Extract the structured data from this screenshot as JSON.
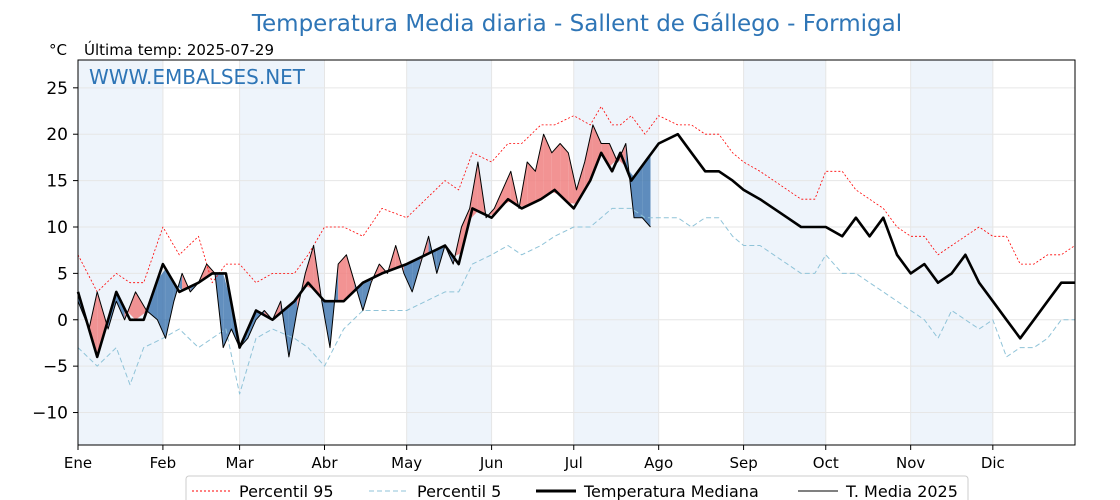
{
  "title": "Temperatura Media diaria - Sallent de Gállego - Formigal",
  "unit_label": "°C",
  "last_temp": "Última temp: 2025-07-29",
  "watermark": "WWW.EMBALSES.NET",
  "colors": {
    "title": "#2e75b6",
    "p95": "#ff0000",
    "p5": "#8fc3d8",
    "median": "#000000",
    "current": "#000000",
    "above_fill": "#f08080",
    "above_fill_light": "#f6b8b8",
    "below_fill": "#2e6aa8",
    "below_fill_light": "#8fb0d0",
    "band": "#eef4fb"
  },
  "chart_data": {
    "type": "line",
    "x_unit": "day of year",
    "xlim": [
      1,
      365
    ],
    "ylim": [
      -13.5,
      28
    ],
    "yticks": [
      -10,
      -5,
      0,
      5,
      10,
      15,
      20,
      25
    ],
    "grid": true,
    "months": [
      {
        "label": "Ene",
        "day": 1
      },
      {
        "label": "Feb",
        "day": 32
      },
      {
        "label": "Mar",
        "day": 60
      },
      {
        "label": "Abr",
        "day": 91
      },
      {
        "label": "May",
        "day": 121
      },
      {
        "label": "Jun",
        "day": 152
      },
      {
        "label": "Jul",
        "day": 182
      },
      {
        "label": "Ago",
        "day": 213
      },
      {
        "label": "Sep",
        "day": 244
      },
      {
        "label": "Oct",
        "day": 274
      },
      {
        "label": "Nov",
        "day": 305
      },
      {
        "label": "Dic",
        "day": 335
      }
    ],
    "legend": {
      "position": "bottom",
      "entries": [
        {
          "label": "Percentil 95",
          "style": "p95"
        },
        {
          "label": "Percentil 5",
          "style": "p5"
        },
        {
          "label": "Temperatura Mediana",
          "style": "median"
        },
        {
          "label": "T. Media 2025",
          "style": "current"
        }
      ]
    },
    "series": [
      {
        "key": "p95",
        "name": "Percentil 95",
        "x": [
          1,
          8,
          15,
          20,
          25,
          32,
          38,
          45,
          50,
          55,
          60,
          66,
          72,
          80,
          85,
          91,
          98,
          105,
          112,
          121,
          128,
          135,
          140,
          145,
          152,
          158,
          163,
          170,
          175,
          182,
          188,
          192,
          196,
          199,
          203,
          208,
          213,
          220,
          225,
          230,
          235,
          240,
          244,
          250,
          255,
          260,
          265,
          270,
          274,
          280,
          285,
          290,
          295,
          300,
          305,
          310,
          315,
          320,
          325,
          330,
          335,
          340,
          345,
          350,
          355,
          360,
          365
        ],
        "y": [
          7,
          3,
          5,
          4,
          4,
          10,
          7,
          9,
          4,
          6,
          6,
          4,
          5,
          5,
          7,
          10,
          10,
          9,
          12,
          11,
          13,
          15,
          14,
          18,
          17,
          19,
          19,
          21,
          21,
          22,
          21,
          23,
          21,
          21,
          22,
          20,
          22,
          21,
          21,
          20,
          20,
          18,
          17,
          16,
          15,
          14,
          13,
          13,
          16,
          16,
          14,
          13,
          12,
          10,
          9,
          9,
          7,
          8,
          9,
          10,
          9,
          9,
          6,
          6,
          7,
          7,
          8
        ]
      },
      {
        "key": "p5",
        "name": "Percentil 5",
        "x": [
          1,
          8,
          15,
          20,
          25,
          32,
          38,
          45,
          50,
          55,
          60,
          66,
          72,
          80,
          85,
          91,
          98,
          105,
          112,
          121,
          128,
          135,
          140,
          145,
          152,
          158,
          163,
          170,
          175,
          182,
          188,
          192,
          196,
          199,
          203,
          208,
          213,
          220,
          225,
          230,
          235,
          240,
          244,
          250,
          255,
          260,
          265,
          270,
          274,
          280,
          285,
          290,
          295,
          300,
          305,
          310,
          315,
          320,
          325,
          330,
          335,
          340,
          345,
          350,
          355,
          360,
          365
        ],
        "y": [
          -3,
          -5,
          -3,
          -7,
          -3,
          -2,
          -1,
          -3,
          -2,
          -1,
          -8,
          -2,
          -1,
          -2,
          -3,
          -5,
          -1,
          1,
          1,
          1,
          2,
          3,
          3,
          6,
          7,
          8,
          7,
          8,
          9,
          10,
          10,
          11,
          12,
          12,
          12,
          11,
          11,
          11,
          10,
          11,
          11,
          9,
          8,
          8,
          7,
          6,
          5,
          5,
          7,
          5,
          5,
          4,
          3,
          2,
          1,
          0,
          -2,
          1,
          0,
          -1,
          0,
          -4,
          -3,
          -3,
          -2,
          0,
          0
        ]
      },
      {
        "key": "median",
        "name": "Temperatura Mediana",
        "x": [
          1,
          8,
          15,
          20,
          25,
          32,
          38,
          45,
          50,
          55,
          60,
          66,
          72,
          80,
          85,
          91,
          98,
          105,
          112,
          121,
          128,
          135,
          140,
          145,
          152,
          158,
          163,
          170,
          175,
          182,
          188,
          192,
          196,
          199,
          203,
          208,
          213,
          220,
          225,
          230,
          235,
          240,
          244,
          250,
          255,
          260,
          265,
          270,
          274,
          280,
          285,
          290,
          295,
          300,
          305,
          310,
          315,
          320,
          325,
          330,
          335,
          340,
          345,
          350,
          355,
          360,
          365
        ],
        "y": [
          3,
          -4,
          3,
          0,
          0,
          6,
          3,
          4,
          5,
          5,
          -3,
          1,
          0,
          2,
          4,
          2,
          2,
          4,
          5,
          6,
          7,
          8,
          6,
          12,
          11,
          13,
          12,
          13,
          14,
          12,
          15,
          18,
          16,
          18,
          15,
          17,
          19,
          20,
          18,
          16,
          16,
          15,
          14,
          13,
          12,
          11,
          10,
          10,
          10,
          9,
          11,
          9,
          11,
          7,
          5,
          6,
          4,
          5,
          7,
          4,
          2,
          0,
          -2,
          0,
          2,
          4,
          4
        ]
      },
      {
        "key": "current",
        "name": "T. Media 2025",
        "x": [
          1,
          5,
          8,
          12,
          15,
          18,
          22,
          26,
          30,
          33,
          36,
          39,
          42,
          45,
          48,
          51,
          54,
          57,
          60,
          63,
          66,
          69,
          72,
          75,
          78,
          81,
          84,
          87,
          90,
          93,
          96,
          99,
          102,
          105,
          108,
          111,
          114,
          117,
          120,
          123,
          126,
          129,
          132,
          135,
          138,
          141,
          144,
          147,
          150,
          153,
          156,
          159,
          162,
          165,
          168,
          171,
          174,
          177,
          180,
          183,
          186,
          189,
          192,
          195,
          198,
          201,
          204,
          207,
          210
        ],
        "y": [
          2,
          -1,
          3,
          -1,
          2,
          0,
          3,
          1,
          0,
          -2,
          2,
          5,
          3,
          4,
          6,
          5,
          -3,
          -1,
          -3,
          -2,
          0,
          1,
          0,
          2,
          -4,
          1,
          5,
          8,
          2,
          -3,
          6,
          7,
          4,
          1,
          4,
          6,
          5,
          8,
          5,
          3,
          6,
          9,
          5,
          8,
          6,
          10,
          12,
          17,
          11,
          12,
          14,
          16,
          12,
          17,
          16,
          20,
          18,
          19,
          18,
          14,
          17,
          21,
          19,
          19,
          17,
          19,
          11,
          11,
          10
        ]
      }
    ],
    "fill_between": [
      {
        "between": [
          "current",
          "median"
        ],
        "above": "above_fill",
        "below": "below_fill"
      }
    ]
  }
}
